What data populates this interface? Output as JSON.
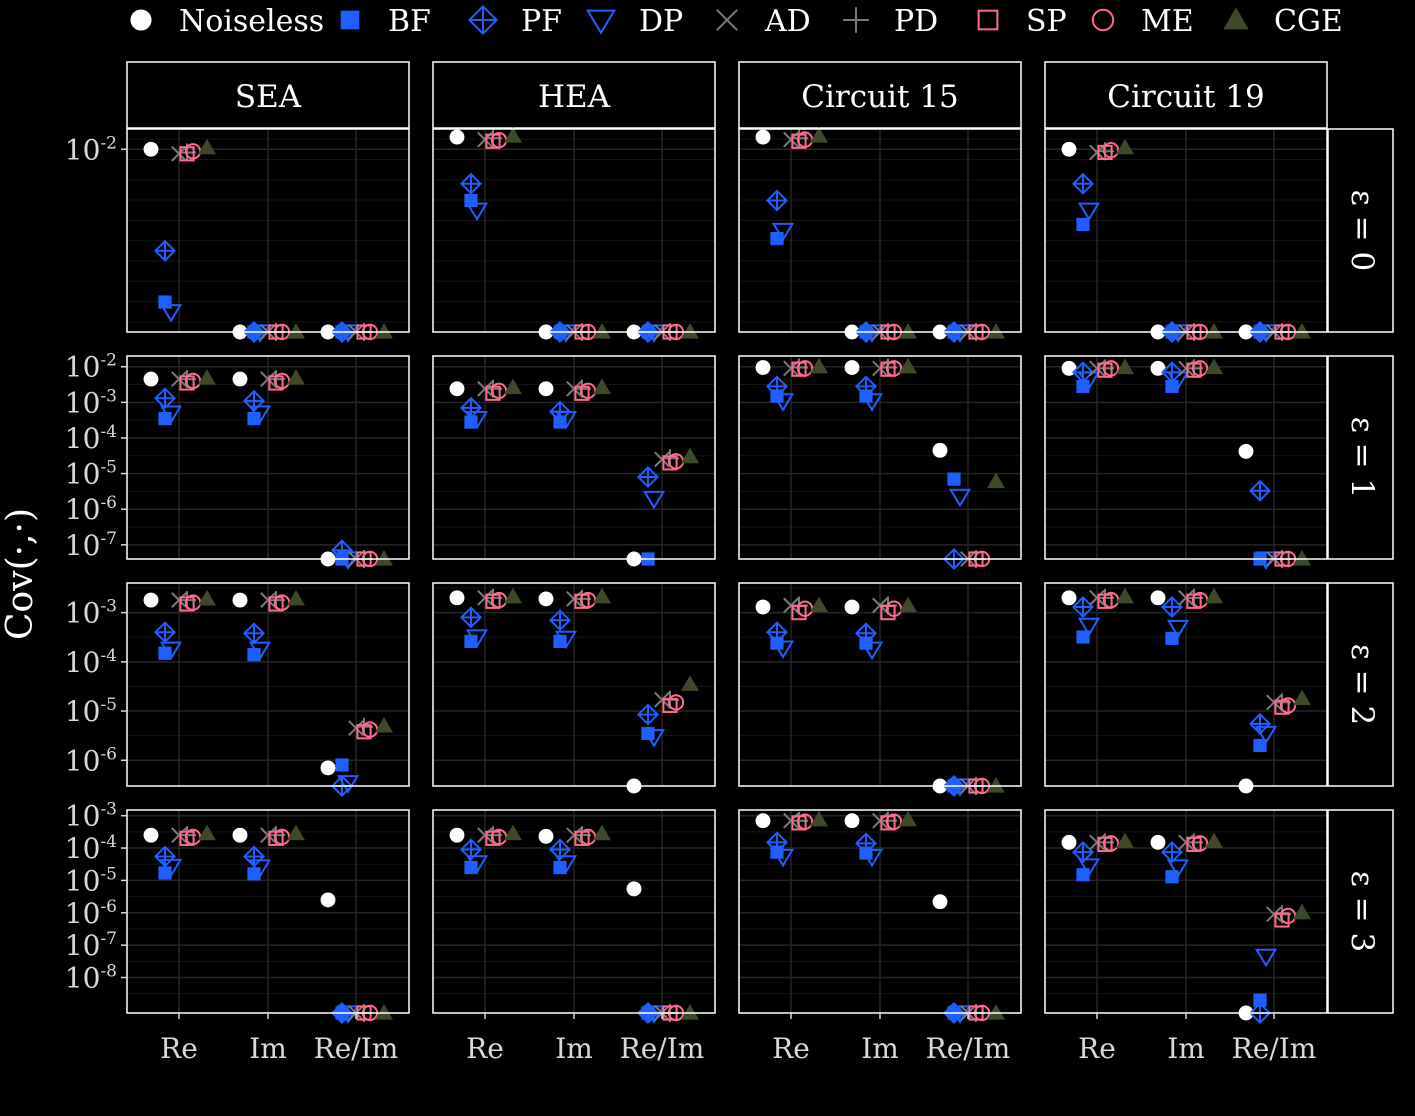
{
  "chart_data": {
    "type": "scatter",
    "layout": "facet-grid",
    "ylabel": "Cov(·,·)",
    "yscale": "log10",
    "columns": [
      "SEA",
      "HEA",
      "Circuit 15",
      "Circuit 19"
    ],
    "rows": [
      {
        "label": "ε = 0",
        "ylim": [
          1e-11,
          0.1
        ],
        "ticks": [
          {
            "v": 0.01,
            "label": "10-2"
          }
        ]
      },
      {
        "label": "ε = 1",
        "ylim": [
          4e-08,
          0.02
        ],
        "ticks": [
          {
            "v": 0.01,
            "label": "10-2"
          },
          {
            "v": 0.001,
            "label": "10-3"
          },
          {
            "v": 0.0001,
            "label": "10-4"
          },
          {
            "v": 1e-05,
            "label": "10-5"
          },
          {
            "v": 1e-06,
            "label": "10-6"
          },
          {
            "v": 1e-07,
            "label": "10-7"
          }
        ]
      },
      {
        "label": "ε = 2",
        "ylim": [
          3e-07,
          0.004
        ],
        "ticks": [
          {
            "v": 0.001,
            "label": "10-3"
          },
          {
            "v": 0.0001,
            "label": "10-4"
          },
          {
            "v": 1e-05,
            "label": "10-5"
          },
          {
            "v": 1e-06,
            "label": "10-6"
          }
        ]
      },
      {
        "label": "ε = 3",
        "ylim": [
          8e-10,
          0.0015
        ],
        "ticks": [
          {
            "v": 0.001,
            "label": "10-3"
          },
          {
            "v": 0.0001,
            "label": "10-4"
          },
          {
            "v": 1e-05,
            "label": "10-5"
          },
          {
            "v": 1e-06,
            "label": "10-6"
          },
          {
            "v": 1e-07,
            "label": "10-7"
          },
          {
            "v": 1e-08,
            "label": "10-8"
          }
        ]
      }
    ],
    "categories": [
      "Re",
      "Im",
      "Re/Im"
    ],
    "series": [
      {
        "name": "Noiseless",
        "marker": "filled-circle",
        "color": "#ffffff"
      },
      {
        "name": "BF",
        "marker": "filled-square",
        "color": "#1f5fff"
      },
      {
        "name": "PF",
        "marker": "diamond-plus",
        "color": "#1f5fff"
      },
      {
        "name": "DP",
        "marker": "triangle-down",
        "color": "#1f5fff"
      },
      {
        "name": "AD",
        "marker": "cross",
        "color": "#7a7a7a"
      },
      {
        "name": "PD",
        "marker": "plus",
        "color": "#7a7a7a"
      },
      {
        "name": "SP",
        "marker": "open-square",
        "color": "#ff6b8b"
      },
      {
        "name": "ME",
        "marker": "open-circle",
        "color": "#ff6b8b"
      },
      {
        "name": "CGE",
        "marker": "filled-triangle",
        "color": "#3d4a2a"
      }
    ],
    "values": [
      [
        {
          "Re": [
            0.01,
            3e-10,
            1e-07,
            1e-10,
            0.006,
            0.007,
            0.006,
            0.008,
            0.012
          ],
          "Im": [
            0,
            0,
            0,
            0,
            0,
            0,
            0,
            0,
            0
          ],
          "Re/Im": [
            0,
            0,
            0,
            0,
            0,
            0,
            0,
            0,
            0
          ]
        },
        {
          "Re": [
            0.04,
            3e-05,
            0.0002,
            1e-05,
            0.03,
            0.035,
            0.025,
            0.028,
            0.045
          ],
          "Im": [
            0,
            0,
            0,
            0,
            0,
            0,
            0,
            0,
            0
          ],
          "Re/Im": [
            0,
            0,
            0,
            0,
            0,
            0,
            0,
            0,
            0
          ]
        },
        {
          "Re": [
            0.04,
            4e-07,
            3e-05,
            1e-06,
            0.03,
            0.035,
            0.025,
            0.03,
            0.045
          ],
          "Im": [
            0,
            0,
            0,
            0,
            0,
            0,
            0,
            0,
            0
          ],
          "Re/Im": [
            0,
            0,
            0,
            0,
            0,
            0,
            0,
            0,
            0
          ]
        },
        {
          "Re": [
            0.01,
            2e-06,
            0.0002,
            1e-05,
            0.007,
            0.008,
            0.007,
            0.009,
            0.012
          ],
          "Im": [
            0,
            0,
            0,
            0,
            0,
            0,
            0,
            0,
            0
          ],
          "Re/Im": [
            0,
            0,
            0,
            0,
            0,
            0,
            0,
            0,
            0
          ]
        }
      ],
      [
        {
          "Re": [
            0.0045,
            0.00035,
            0.0013,
            0.0005,
            0.0045,
            0.0045,
            0.0035,
            0.004,
            0.0048
          ],
          "Im": [
            0.0045,
            0.00035,
            0.0011,
            0.0005,
            0.0045,
            0.0045,
            0.0035,
            0.004,
            0.0048
          ],
          "Re/Im": [
            4e-08,
            4e-08,
            7e-08,
            4e-08,
            4e-08,
            4e-08,
            4e-08,
            4e-08,
            4e-08
          ]
        },
        {
          "Re": [
            0.0024,
            0.00028,
            0.0007,
            0.00035,
            0.0024,
            0.0024,
            0.0018,
            0.0021,
            0.0026
          ],
          "Im": [
            0.0024,
            0.00028,
            0.00055,
            0.00035,
            0.0024,
            0.0024,
            0.0018,
            0.0021,
            0.0026
          ],
          "Re/Im": [
            4e-08,
            4e-08,
            8e-06,
            2e-06,
            2.5e-05,
            2.7e-05,
            2e-05,
            2.2e-05,
            3e-05
          ]
        },
        {
          "Re": [
            0.0095,
            0.0015,
            0.0028,
            0.0011,
            0.009,
            0.0095,
            0.0085,
            0.009,
            0.01
          ],
          "Im": [
            0.0095,
            0.0015,
            0.0028,
            0.0011,
            0.009,
            0.0095,
            0.0085,
            0.009,
            0.01
          ],
          "Re/Im": [
            4.5e-05,
            7e-06,
            4e-08,
            2.3e-06,
            4e-08,
            4e-08,
            4e-08,
            4e-08,
            6e-06
          ]
        },
        {
          "Re": [
            0.009,
            0.0028,
            0.007,
            0.0045,
            0.009,
            0.009,
            0.008,
            0.009,
            0.0095
          ],
          "Im": [
            0.009,
            0.0028,
            0.007,
            0.0045,
            0.009,
            0.009,
            0.008,
            0.009,
            0.0095
          ],
          "Re/Im": [
            4.2e-05,
            4e-08,
            3.3e-06,
            4e-08,
            4e-08,
            4e-08,
            4e-08,
            4e-08,
            4e-08
          ]
        }
      ],
      [
        {
          "Re": [
            0.0018,
            0.00015,
            0.0004,
            0.00018,
            0.0018,
            0.0018,
            0.0015,
            0.0016,
            0.0019
          ],
          "Im": [
            0.0018,
            0.00014,
            0.00038,
            0.00018,
            0.0018,
            0.0018,
            0.0015,
            0.0016,
            0.0019
          ],
          "Re/Im": [
            7e-07,
            8e-07,
            3e-07,
            3.5e-07,
            4.5e-06,
            4.8e-06,
            3.8e-06,
            4.2e-06,
            5e-06
          ]
        },
        {
          "Re": [
            0.002,
            0.00026,
            0.0008,
            0.00032,
            0.002,
            0.002,
            0.0017,
            0.0018,
            0.0021
          ],
          "Im": [
            0.0019,
            0.00026,
            0.0007,
            0.0003,
            0.0019,
            0.0019,
            0.0017,
            0.0018,
            0.0021
          ],
          "Re/Im": [
            3e-07,
            3.5e-06,
            8.5e-06,
            3e-06,
            1.7e-05,
            1.7e-05,
            1.3e-05,
            1.5e-05,
            3.5e-05
          ]
        },
        {
          "Re": [
            0.0013,
            0.00024,
            0.0004,
            0.00019,
            0.0014,
            0.0014,
            0.001,
            0.0012,
            0.0014
          ],
          "Im": [
            0.0013,
            0.00024,
            0.00038,
            0.00018,
            0.0014,
            0.0014,
            0.001,
            0.0012,
            0.0014
          ],
          "Re/Im": [
            3e-07,
            3e-07,
            3e-07,
            3e-07,
            3e-07,
            3e-07,
            3e-07,
            3e-07,
            3e-07
          ]
        },
        {
          "Re": [
            0.002,
            0.00032,
            0.0013,
            0.00055,
            0.002,
            0.002,
            0.0017,
            0.0018,
            0.0021
          ],
          "Im": [
            0.002,
            0.0003,
            0.0013,
            0.0005,
            0.002,
            0.002,
            0.0017,
            0.0018,
            0.0021
          ],
          "Re/Im": [
            3e-07,
            2e-06,
            5.5e-06,
            3.5e-06,
            1.5e-05,
            1.5e-05,
            1.2e-05,
            1.3e-05,
            1.8e-05
          ]
        }
      ],
      [
        {
          "Re": [
            0.00025,
            1.7e-05,
            5.5e-05,
            2.7e-05,
            0.00025,
            0.00025,
            0.0002,
            0.00022,
            0.00028
          ],
          "Im": [
            0.00025,
            1.6e-05,
            5.5e-05,
            2.6e-05,
            0.00025,
            0.00025,
            0.0002,
            0.00022,
            0.00028
          ],
          "Re/Im": [
            2.5e-06,
            8e-10,
            8e-10,
            8e-10,
            8e-10,
            8e-10,
            8e-10,
            8e-10,
            8e-10
          ]
        },
        {
          "Re": [
            0.00025,
            2.5e-05,
            9e-05,
            3.5e-05,
            0.00025,
            0.00025,
            0.0002,
            0.00022,
            0.00028
          ],
          "Im": [
            0.00023,
            2.5e-05,
            9e-05,
            3.5e-05,
            0.00025,
            0.00025,
            0.0002,
            0.00022,
            0.00028
          ],
          "Re/Im": [
            5.5e-06,
            8e-10,
            8e-10,
            8e-10,
            8e-10,
            8e-10,
            8e-10,
            8e-10,
            8e-10
          ]
        },
        {
          "Re": [
            0.0007,
            7.5e-05,
            0.00015,
            5.5e-05,
            0.0007,
            0.0007,
            0.0006,
            0.00065,
            0.00075
          ],
          "Im": [
            0.0007,
            7e-05,
            0.00014,
            5.5e-05,
            0.0007,
            0.0007,
            0.0006,
            0.00065,
            0.00075
          ],
          "Re/Im": [
            2.2e-06,
            8e-10,
            8e-10,
            8e-10,
            8e-10,
            8e-10,
            8e-10,
            8e-10,
            8e-10
          ]
        },
        {
          "Re": [
            0.00015,
            1.5e-05,
            7.5e-05,
            2.8e-05,
            0.00015,
            0.00015,
            0.00013,
            0.00014,
            0.00016
          ],
          "Im": [
            0.00015,
            1.3e-05,
            7.5e-05,
            2.6e-05,
            0.00015,
            0.00015,
            0.00013,
            0.00014,
            0.00016
          ],
          "Re/Im": [
            8e-10,
            2e-09,
            8e-10,
            4.5e-08,
            9e-07,
            9e-07,
            6e-07,
            8e-07,
            1e-06
          ]
        }
      ]
    ]
  }
}
